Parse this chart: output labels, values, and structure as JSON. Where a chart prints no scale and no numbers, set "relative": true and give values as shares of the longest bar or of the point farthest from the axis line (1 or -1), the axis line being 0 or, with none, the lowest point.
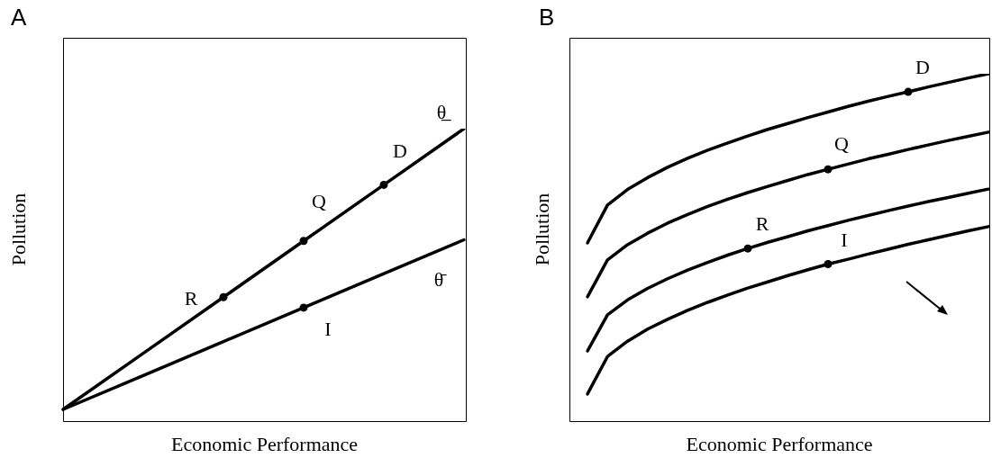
{
  "chart_data": [
    {
      "type": "line",
      "title": "A",
      "xlabel": "Economic Performance",
      "ylabel": "Pollution",
      "relative": true,
      "categories": [
        null,
        null,
        null,
        null,
        null,
        null
      ],
      "series": [
        {
          "name": "θ̲",
          "color": "#000000",
          "values": [
            0.04,
            0.232,
            0.424,
            0.616,
            0.808,
            1
          ]
        },
        {
          "name": "θ̄",
          "color": "#000000",
          "values": [
            0.04,
            0.156,
            0.272,
            0.388,
            0.504,
            0.62
          ]
        }
      ],
      "annotations": [
        "R",
        "Q",
        "D",
        "I"
      ]
    },
    {
      "type": "line",
      "title": "B",
      "xlabel": "Economic Performance",
      "ylabel": "Pollution",
      "relative": true,
      "categories": [
        null,
        null,
        null,
        null,
        null,
        null,
        null,
        null,
        null,
        null,
        null,
        null,
        null,
        null,
        null,
        null,
        null,
        null,
        null,
        null,
        null
      ],
      "series": [
        {
          "color": "#000000",
          "values": [
            0.513,
            0.622,
            0.667,
            0.701,
            0.731,
            0.757,
            0.78,
            0.801,
            0.821,
            0.84,
            0.857,
            0.874,
            0.89,
            0.906,
            0.921,
            0.935,
            0.948,
            0.962,
            0.975,
            0.988,
            1
          ]
        },
        {
          "color": "#000000",
          "values": [
            0.358,
            0.464,
            0.508,
            0.541,
            0.57,
            0.595,
            0.618,
            0.639,
            0.658,
            0.676,
            0.693,
            0.71,
            0.725,
            0.74,
            0.755,
            0.768,
            0.782,
            0.795,
            0.808,
            0.82,
            0.832
          ]
        },
        {
          "color": "#000000",
          "values": [
            0.202,
            0.306,
            0.349,
            0.382,
            0.41,
            0.435,
            0.457,
            0.478,
            0.497,
            0.515,
            0.531,
            0.548,
            0.563,
            0.578,
            0.592,
            0.606,
            0.619,
            0.632,
            0.644,
            0.656,
            0.668
          ]
        },
        {
          "color": "#000000",
          "values": [
            0.078,
            0.186,
            0.23,
            0.265,
            0.293,
            0.319,
            0.342,
            0.363,
            0.383,
            0.401,
            0.419,
            0.436,
            0.452,
            0.466,
            0.481,
            0.495,
            0.509,
            0.522,
            0.535,
            0.548,
            0.56
          ]
        }
      ],
      "annotations": [
        {
          "text": "D",
          "y": 0.948
        },
        {
          "text": "Q",
          "y": 0.725
        },
        {
          "text": "R",
          "y": 0.497
        },
        {
          "text": "I",
          "y": 0.452
        }
      ]
    }
  ]
}
